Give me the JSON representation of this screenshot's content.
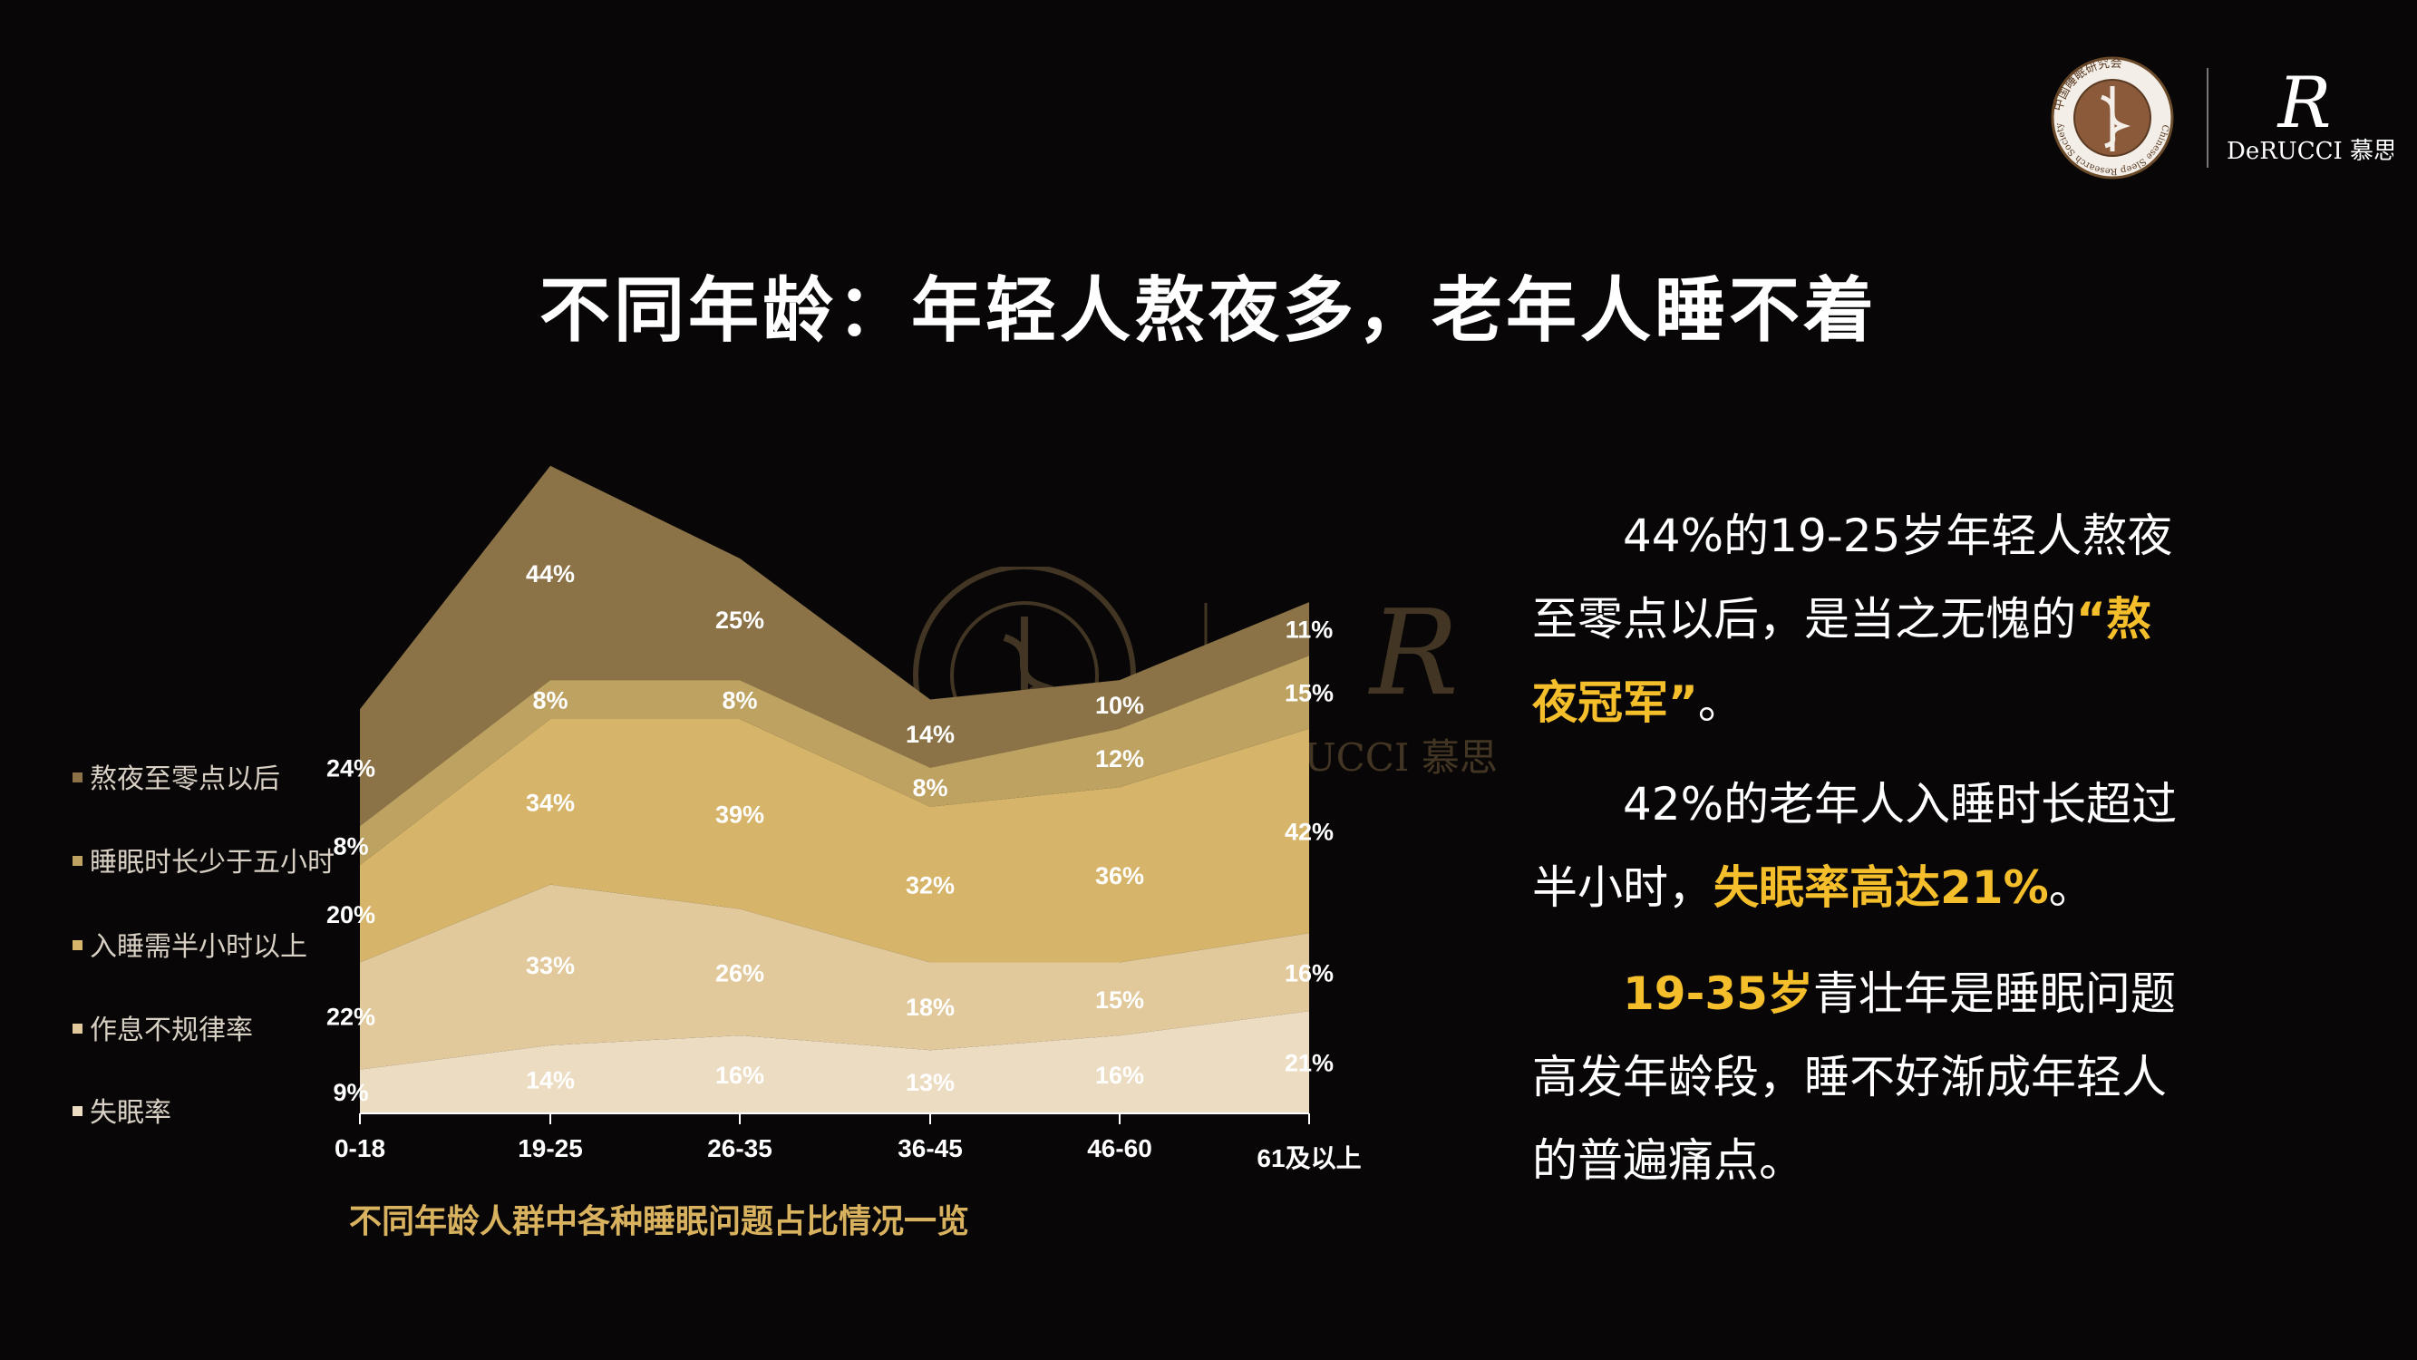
{
  "slide": {
    "title": "不同年龄：年轻人熬夜多，老年人睡不着",
    "caption": "不同年龄人群中各种睡眠问题占比情况一览",
    "logos": {
      "society_ring_text": "中国睡眠研究会",
      "society_english": "Chinese Sleep Research Society",
      "brand_monogram": "R",
      "brand_name": "DeRUCCI 慕思"
    },
    "right_text": {
      "p1a": "44%的19-25岁年轻人熬夜",
      "p1b": "至零点以后，是当之无愧的",
      "p1c_hl": "“熬",
      "p1d_hl": "夜冠军”",
      "p1e": "。",
      "p2a": "42%的老年人入睡时长超过",
      "p2b": "半小时，",
      "p2c_hl": "失眠率高达21%",
      "p2d": "。",
      "p3a_hl": "19-35岁",
      "p3b": "青壮年是睡眠问题",
      "p3c": "高发年龄段，睡不好渐成年轻人",
      "p3d": "的普遍痛点。"
    },
    "colors": {
      "background": "#080606",
      "highlight": "#f5be2b",
      "caption": "#d9b25f"
    }
  },
  "chart_data": {
    "type": "area",
    "stacked": true,
    "categories": [
      "0-18",
      "19-25",
      "26-35",
      "36-45",
      "46-60",
      "61及以上"
    ],
    "series": [
      {
        "name": "失眠率",
        "values": [
          9,
          14,
          16,
          13,
          16,
          21
        ],
        "labels": [
          "9%",
          "14%",
          "16%",
          "13%",
          "16%",
          "21%"
        ],
        "color": "#ecdcc2"
      },
      {
        "name": "作息不规律率",
        "values": [
          22,
          33,
          26,
          18,
          15,
          16
        ],
        "labels": [
          "22%",
          "33%",
          "26%",
          "18%",
          "15%",
          "16%"
        ],
        "color": "#e1c99c"
      },
      {
        "name": "入睡需半小时以上",
        "values": [
          20,
          34,
          39,
          32,
          36,
          42
        ],
        "labels": [
          "20%",
          "34%",
          "39%",
          "32%",
          "36%",
          "42%"
        ],
        "color": "#d6b56b"
      },
      {
        "name": "睡眠时长少于五小时",
        "values": [
          8,
          8,
          8,
          8,
          12,
          15
        ],
        "labels": [
          "8%",
          "8%",
          "8%",
          "8%",
          "12%",
          "15%"
        ],
        "color": "#bda261"
      },
      {
        "name": "熬夜至零点以后",
        "values": [
          24,
          44,
          25,
          14,
          10,
          11
        ],
        "labels": [
          "24%",
          "44%",
          "25%",
          "14%",
          "10%",
          "11%"
        ],
        "color": "#8b7347"
      }
    ],
    "legend_order": [
      "熬夜至零点以后",
      "睡眠时长少于五小时",
      "入睡需半小时以上",
      "作息不规律率",
      "失眠率"
    ],
    "legend_position": "left",
    "grid": false,
    "title": "不同年龄人群中各种睡眠问题占比情况一览"
  }
}
